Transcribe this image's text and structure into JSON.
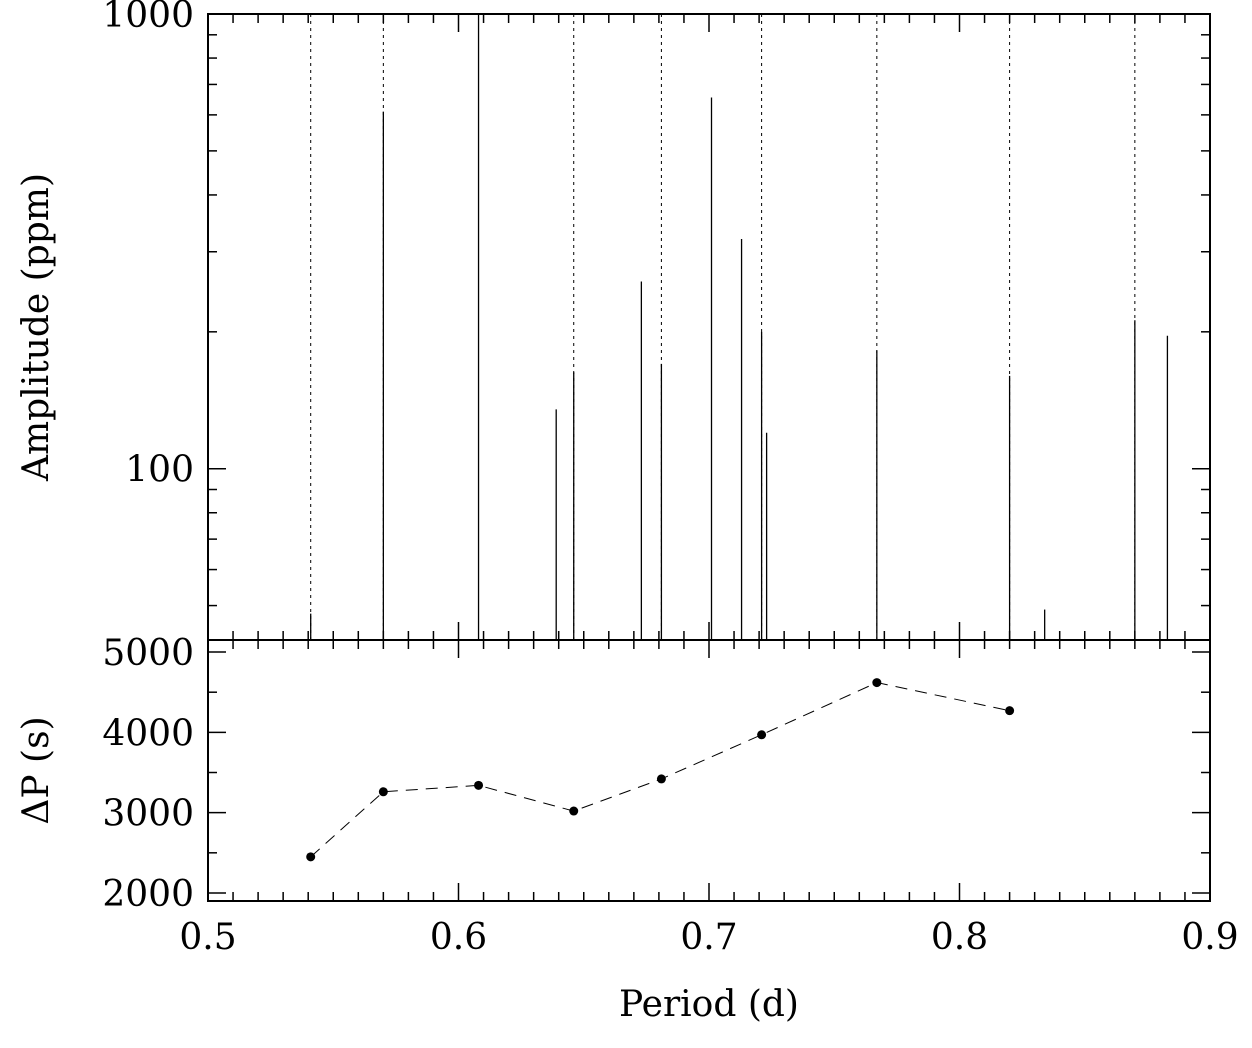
{
  "chart_data": [
    {
      "type": "bar",
      "panel": "top",
      "ylabel": "Amplitude (ppm)",
      "yscale": "log",
      "xlim": [
        0.5,
        0.9
      ],
      "ylim": [
        42,
        1000
      ],
      "y_tick_labels": [
        "100",
        "1000"
      ],
      "grid": false,
      "bars": [
        {
          "x": 0.541,
          "y": 48
        },
        {
          "x": 0.57,
          "y": 610
        },
        {
          "x": 0.608,
          "y": 1000
        },
        {
          "x": 0.639,
          "y": 135
        },
        {
          "x": 0.646,
          "y": 163
        },
        {
          "x": 0.673,
          "y": 258
        },
        {
          "x": 0.681,
          "y": 170
        },
        {
          "x": 0.701,
          "y": 655
        },
        {
          "x": 0.713,
          "y": 320
        },
        {
          "x": 0.721,
          "y": 200
        },
        {
          "x": 0.723,
          "y": 120
        },
        {
          "x": 0.767,
          "y": 182
        },
        {
          "x": 0.82,
          "y": 160
        },
        {
          "x": 0.834,
          "y": 49
        },
        {
          "x": 0.87,
          "y": 212
        },
        {
          "x": 0.883,
          "y": 196
        }
      ],
      "dotted_markers_x": [
        0.541,
        0.57,
        0.646,
        0.681,
        0.721,
        0.767,
        0.82,
        0.87
      ]
    },
    {
      "type": "line",
      "panel": "bottom",
      "xlabel": "Period (d)",
      "ylabel": "ΔP (s)",
      "xlim": [
        0.5,
        0.9
      ],
      "ylim": [
        1900,
        5150
      ],
      "x_tick_labels": [
        "0.5",
        "0.6",
        "0.7",
        "0.8",
        "0.9"
      ],
      "y_tick_labels": [
        "2000",
        "3000",
        "4000",
        "5000"
      ],
      "line_style": "dashed",
      "marker": "circle",
      "grid": false,
      "x": [
        0.541,
        0.57,
        0.608,
        0.646,
        0.681,
        0.721,
        0.767,
        0.82
      ],
      "y": [
        2450,
        3260,
        3340,
        3020,
        3420,
        3970,
        4620,
        4270
      ]
    }
  ]
}
